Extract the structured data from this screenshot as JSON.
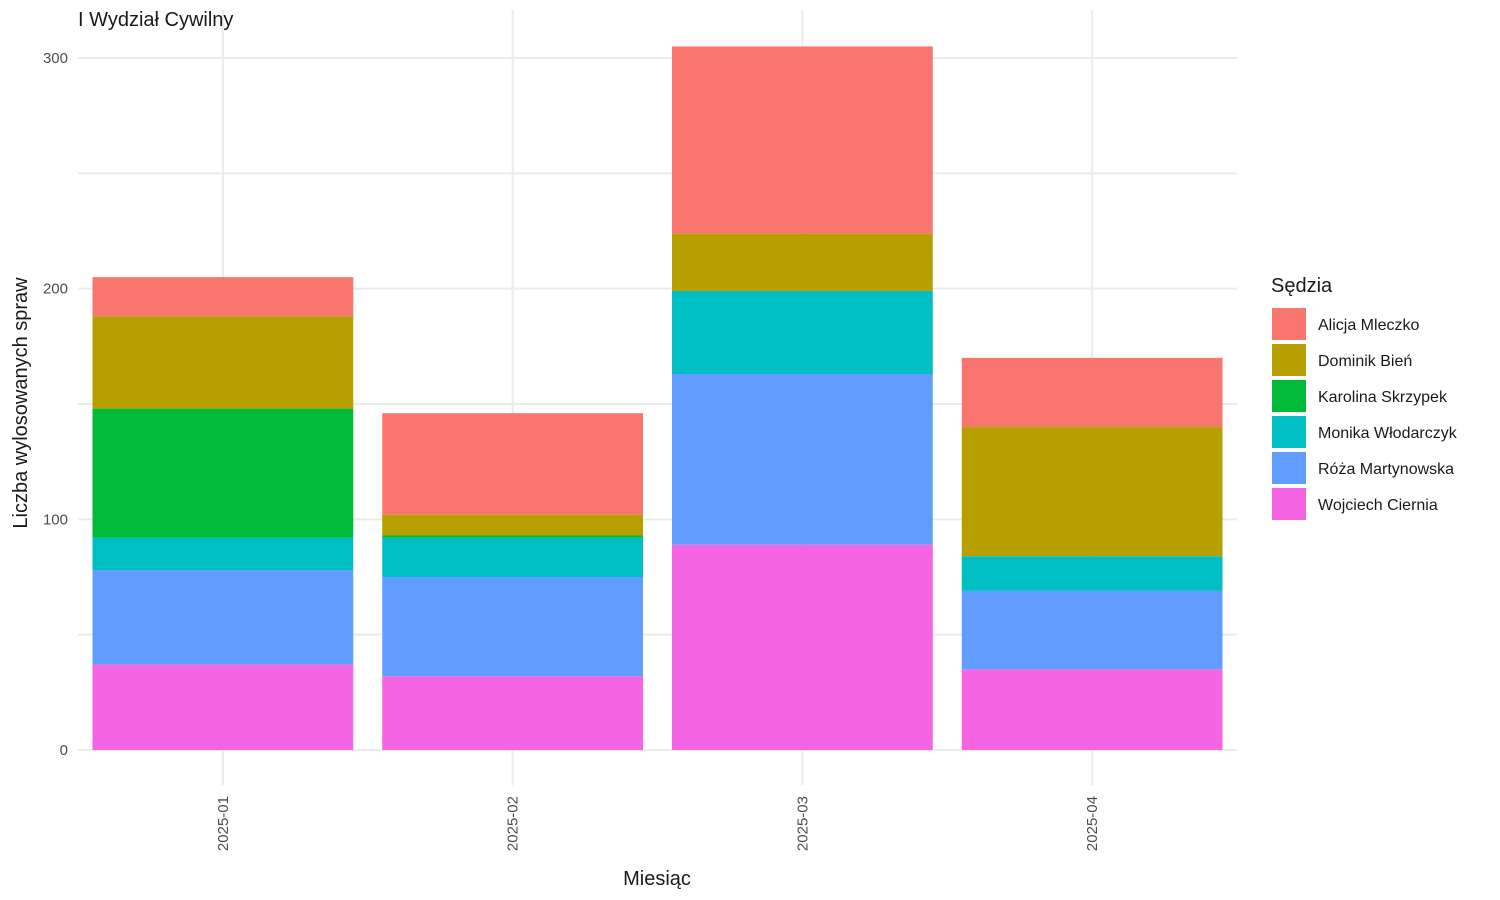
{
  "chart_data": {
    "type": "bar",
    "stacked": true,
    "title": "I Wydział Cywilny",
    "xlabel": "Miesiąc",
    "ylabel": "Liczba wylosowanych spraw",
    "categories": [
      "2025-01",
      "2025-02",
      "2025-03",
      "2025-04"
    ],
    "ylim": [
      0,
      320
    ],
    "yticks": [
      0,
      100,
      200,
      300
    ],
    "grid": true,
    "legend_title": "Sędzia",
    "legend_position": "right",
    "series": [
      {
        "name": "Wojciech Ciernia",
        "color": "#F564E3",
        "values": [
          37,
          32,
          89,
          35
        ]
      },
      {
        "name": "Róża Martynowska",
        "color": "#619CFF",
        "values": [
          41,
          43,
          74,
          34
        ]
      },
      {
        "name": "Monika Włodarczyk",
        "color": "#00BFC4",
        "values": [
          14,
          17,
          36,
          15
        ]
      },
      {
        "name": "Karolina Skrzypek",
        "color": "#00BA38",
        "values": [
          56,
          1,
          0,
          0
        ]
      },
      {
        "name": "Dominik Bień",
        "color": "#B79F00",
        "values": [
          40,
          9,
          25,
          56
        ]
      },
      {
        "name": "Alicja Mleczko",
        "color": "#F8766D",
        "values": [
          17,
          44,
          81,
          30
        ]
      }
    ],
    "legend_order": [
      "Alicja Mleczko",
      "Dominik Bień",
      "Karolina Skrzypek",
      "Monika Włodarczyk",
      "Róża Martynowska",
      "Wojciech Ciernia"
    ]
  }
}
